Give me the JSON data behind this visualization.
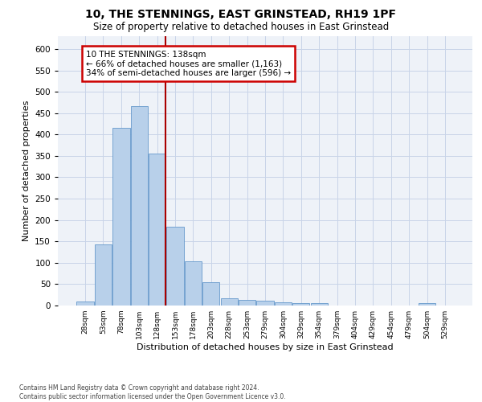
{
  "title1": "10, THE STENNINGS, EAST GRINSTEAD, RH19 1PF",
  "title2": "Size of property relative to detached houses in East Grinstead",
  "xlabel": "Distribution of detached houses by size in East Grinstead",
  "ylabel": "Number of detached properties",
  "categories": [
    "28sqm",
    "53sqm",
    "78sqm",
    "103sqm",
    "128sqm",
    "153sqm",
    "178sqm",
    "203sqm",
    "228sqm",
    "253sqm",
    "279sqm",
    "304sqm",
    "329sqm",
    "354sqm",
    "379sqm",
    "404sqm",
    "429sqm",
    "454sqm",
    "479sqm",
    "504sqm",
    "529sqm"
  ],
  "values": [
    10,
    143,
    415,
    467,
    355,
    185,
    103,
    54,
    16,
    14,
    11,
    7,
    5,
    5,
    0,
    0,
    0,
    0,
    0,
    5,
    0
  ],
  "bar_color": "#b8d0ea",
  "bar_edge_color": "#6699cc",
  "highlight_line_index": 4,
  "highlight_line_color": "#aa0000",
  "annotation_text": "10 THE STENNINGS: 138sqm\n← 66% of detached houses are smaller (1,163)\n34% of semi-detached houses are larger (596) →",
  "annotation_box_color": "#ffffff",
  "annotation_box_edge": "#cc0000",
  "ylim": [
    0,
    630
  ],
  "yticks": [
    0,
    50,
    100,
    150,
    200,
    250,
    300,
    350,
    400,
    450,
    500,
    550,
    600
  ],
  "footer_text": "Contains HM Land Registry data © Crown copyright and database right 2024.\nContains public sector information licensed under the Open Government Licence v3.0.",
  "grid_color": "#c8d4e8",
  "background_color": "#eef2f8"
}
